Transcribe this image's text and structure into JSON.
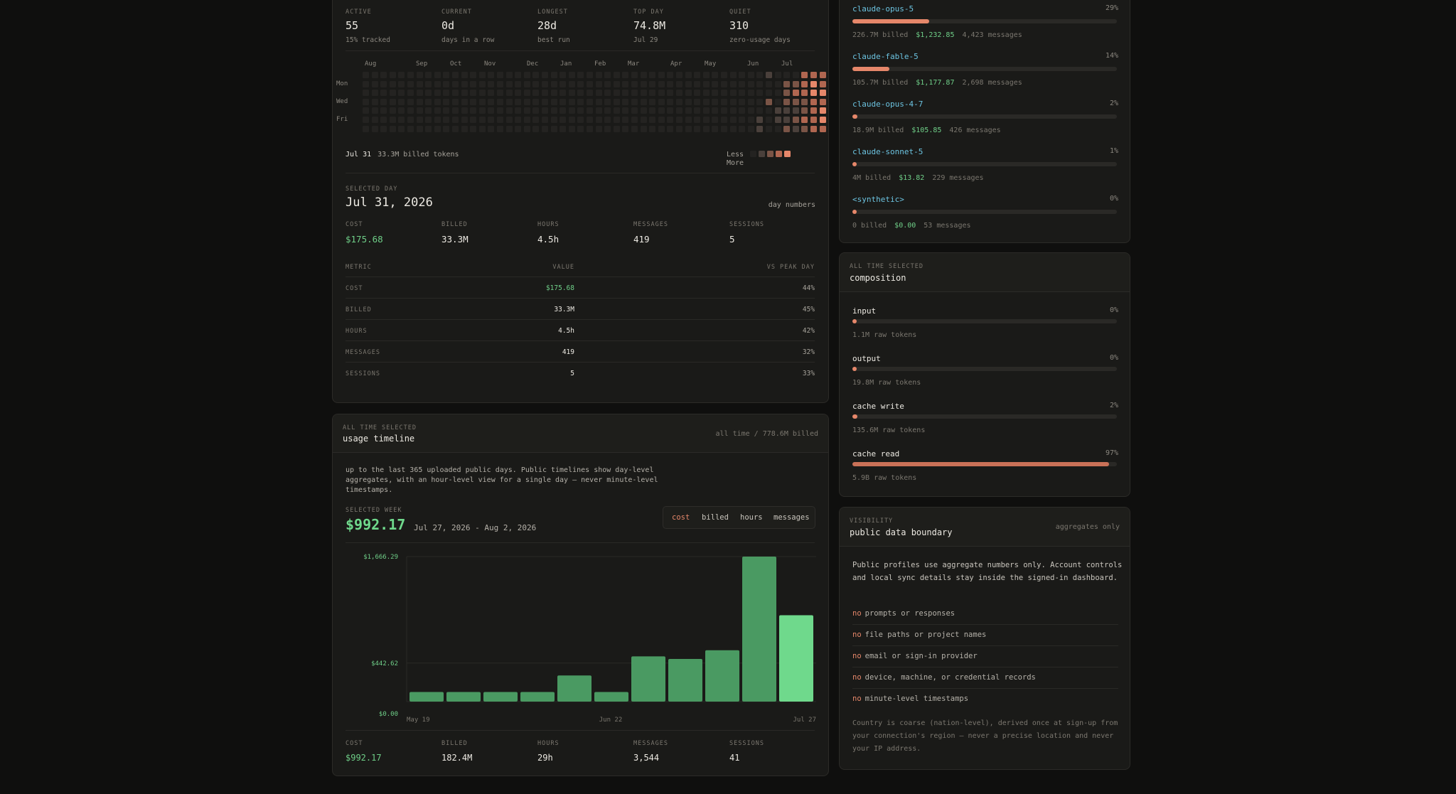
{
  "summary": {
    "stats": [
      {
        "label": "ACTIVE",
        "value": "55",
        "sub": "15% tracked"
      },
      {
        "label": "CURRENT",
        "value": "0d",
        "sub": "days in a row"
      },
      {
        "label": "LONGEST",
        "value": "28d",
        "sub": "best run"
      },
      {
        "label": "TOP DAY",
        "value": "74.8M",
        "sub": "Jul 29"
      },
      {
        "label": "QUIET",
        "value": "310",
        "sub": "zero-usage days"
      }
    ],
    "heatmap": {
      "months": [
        "Aug",
        "Sep",
        "Oct",
        "Nov",
        "Dec",
        "Jan",
        "Feb",
        "Mar",
        "Apr",
        "May",
        "Jun",
        "Jul"
      ],
      "days": [
        "Mon",
        "Wed",
        "Fri"
      ],
      "footer_date": "Jul 31",
      "footer_text": "33.3M billed tokens",
      "legend_less": "Less",
      "legend_more": "More",
      "colors": {
        "empty": "#242321",
        "l1": "#4a403b",
        "l2": "#7a5446",
        "l3": "#b06650",
        "l4": "#e6876a"
      },
      "active_weeks": [
        {
          "week": 44,
          "levels": [
            0,
            0,
            0,
            0,
            0,
            1,
            1
          ]
        },
        {
          "week": 45,
          "levels": [
            1,
            0,
            0,
            2,
            0,
            0,
            0
          ]
        },
        {
          "week": 46,
          "levels": [
            0,
            0,
            0,
            0,
            1,
            1,
            0
          ]
        },
        {
          "week": 47,
          "levels": [
            0,
            2,
            2,
            2,
            1,
            1,
            2
          ]
        },
        {
          "week": 48,
          "levels": [
            0,
            2,
            3,
            2,
            1,
            2,
            1
          ]
        },
        {
          "week": 49,
          "levels": [
            3,
            3,
            3,
            2,
            2,
            3,
            2
          ]
        },
        {
          "week": 50,
          "levels": [
            3,
            4,
            4,
            3,
            3,
            3,
            3
          ]
        },
        {
          "week": 51,
          "levels": [
            3,
            3,
            4,
            3,
            4,
            4,
            3
          ]
        },
        {
          "week": 52,
          "levels": [
            4,
            4,
            4,
            4,
            3,
            4,
            0
          ]
        },
        {
          "week": 53,
          "levels": [
            4,
            4,
            4,
            4,
            4,
            4,
            0
          ]
        }
      ]
    }
  },
  "selected_day": {
    "label": "SELECTED DAY",
    "date": "Jul 31, 2026",
    "mode": "day numbers",
    "stats": [
      {
        "label": "COST",
        "value": "$175.68"
      },
      {
        "label": "BILLED",
        "value": "33.3M"
      },
      {
        "label": "HOURS",
        "value": "4.5h"
      },
      {
        "label": "MESSAGES",
        "value": "419"
      },
      {
        "label": "SESSIONS",
        "value": "5"
      }
    ],
    "table_headers": [
      "METRIC",
      "VALUE",
      "VS PEAK DAY"
    ],
    "rows": [
      {
        "metric": "COST",
        "value": "$175.68",
        "peak": "44%"
      },
      {
        "metric": "BILLED",
        "value": "33.3M",
        "peak": "45%"
      },
      {
        "metric": "HOURS",
        "value": "4.5h",
        "peak": "42%"
      },
      {
        "metric": "MESSAGES",
        "value": "419",
        "peak": "32%"
      },
      {
        "metric": "SESSIONS",
        "value": "5",
        "peak": "33%"
      }
    ]
  },
  "timeline": {
    "kicker": "ALL TIME SELECTED",
    "title": "usage timeline",
    "range": "all time / 778.6M billed",
    "description": "up to the last 365 uploaded public days. Public timelines show day-level aggregates, with an hour-level view for a single day — never minute-level timestamps.",
    "selected_week_label": "SELECTED WEEK",
    "selected_week_value": "$992.17",
    "selected_week_range": "Jul 27, 2026 - Aug 2, 2026",
    "tabs": [
      "cost",
      "billed",
      "hours",
      "messages"
    ],
    "active_tab": "cost",
    "totals": [
      {
        "label": "COST",
        "value": "$992.17"
      },
      {
        "label": "BILLED",
        "value": "182.4M"
      },
      {
        "label": "HOURS",
        "value": "29h"
      },
      {
        "label": "MESSAGES",
        "value": "3,544"
      },
      {
        "label": "SESSIONS",
        "value": "41"
      }
    ]
  },
  "chart_data": {
    "type": "bar",
    "title": "",
    "xlabel": "",
    "ylabel": "",
    "y_ticks": [
      "$1,666.29",
      "$442.62",
      "$0.00"
    ],
    "x_ticks": [
      "May 19",
      "Jun 22",
      "Jul 27"
    ],
    "ylim": [
      0,
      1666.29
    ],
    "values": [
      110,
      110,
      110,
      110,
      300,
      110,
      520,
      490,
      590,
      1666.29,
      992.17
    ],
    "highlight_index": 10,
    "colors": {
      "bar": "#4a9a62",
      "highlight": "#6fd98c",
      "grid": "#2a2926"
    }
  },
  "models": [
    {
      "name": "claude-opus-5",
      "pct": "29%",
      "fill": 0.29,
      "billed": "226.7M billed",
      "cost": "$1,232.85",
      "messages": "4,423 messages"
    },
    {
      "name": "claude-fable-5",
      "pct": "14%",
      "fill": 0.14,
      "billed": "105.7M billed",
      "cost": "$1,177.87",
      "messages": "2,698 messages"
    },
    {
      "name": "claude-opus-4-7",
      "pct": "2%",
      "fill": 0.02,
      "billed": "18.9M billed",
      "cost": "$105.85",
      "messages": "426 messages"
    },
    {
      "name": "claude-sonnet-5",
      "pct": "1%",
      "fill": 0.01,
      "billed": "4M billed",
      "cost": "$13.82",
      "messages": "229 messages"
    },
    {
      "name": "<synthetic>",
      "pct": "0%",
      "fill": 0.0,
      "billed": "0 billed",
      "cost": "$0.00",
      "messages": "53 messages"
    }
  ],
  "composition": {
    "kicker": "ALL TIME SELECTED",
    "title": "composition",
    "items": [
      {
        "name": "input",
        "pct": "0%",
        "fill": 0.0,
        "sub": "1.1M raw tokens"
      },
      {
        "name": "output",
        "pct": "0%",
        "fill": 0.0,
        "sub": "19.8M raw tokens"
      },
      {
        "name": "cache write",
        "pct": "2%",
        "fill": 0.02,
        "sub": "135.6M raw tokens"
      },
      {
        "name": "cache read",
        "pct": "97%",
        "fill": 0.97,
        "sub": "5.9B raw tokens"
      }
    ]
  },
  "visibility": {
    "kicker": "VISIBILITY",
    "title": "public data boundary",
    "badge": "aggregates only",
    "intro": "Public profiles use aggregate numbers only. Account controls and local sync details stay inside the signed-in dashboard.",
    "no_word": "no",
    "items": [
      "prompts or responses",
      "file paths or project names",
      "email or sign-in provider",
      "device, machine, or credential records",
      "minute-level timestamps"
    ],
    "footnote": "Country is coarse (nation-level), derived once at sign-up from your connection's region — never a precise location and never your IP address."
  }
}
